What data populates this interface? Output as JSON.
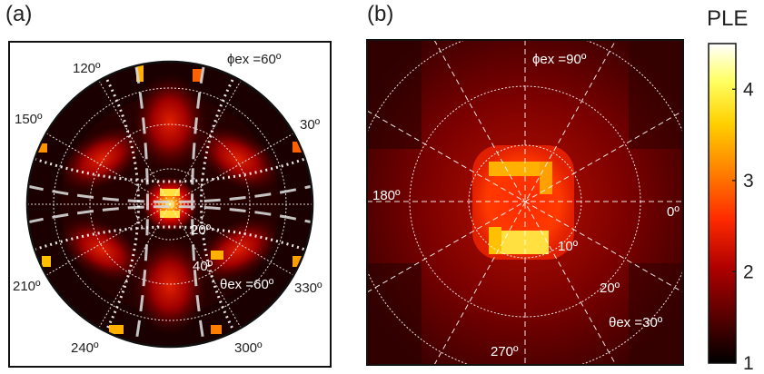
{
  "panel_a": {
    "label": "(a)",
    "annotation_phi": "ϕex =60º",
    "annotation_theta": "θex =60º",
    "angle_labels": [
      "120º",
      "150º",
      "30º",
      "210º",
      "330º",
      "240º",
      "300º"
    ],
    "radial_labels": [
      "20º",
      "40º"
    ]
  },
  "panel_b": {
    "label": "(b)",
    "annotation_phi": "ϕex =90º",
    "annotation_theta": "θex =30º",
    "angle_labels": [
      "180º",
      "0º",
      "270º"
    ],
    "radial_labels": [
      "10º",
      "20º"
    ]
  },
  "colorbar": {
    "title": "PLE",
    "ticks": [
      "1",
      "2",
      "3",
      "4"
    ],
    "min": 1,
    "max": 4.5,
    "colors": [
      "#000000",
      "#5a0000",
      "#b00000",
      "#ff2a00",
      "#ff8000",
      "#ffd000",
      "#ffff60",
      "#ffffff"
    ]
  },
  "chart_data": [
    {
      "type": "heatmap",
      "projection": "polar",
      "title": "",
      "angle_ticks_deg": [
        30,
        120,
        150,
        210,
        240,
        300,
        330
      ],
      "radial_ticks_deg": [
        20,
        40
      ],
      "excitation": {
        "phi_ex_deg": 60,
        "theta_ex_deg": 60
      },
      "value_range": [
        1,
        4.5
      ],
      "features": [
        {
          "kind": "central-hotspot",
          "value": 4.0
        },
        {
          "kind": "lobes",
          "angles_deg": [
            60,
            120,
            240,
            300
          ],
          "value": 2.2
        },
        {
          "kind": "rim-spots",
          "value": 3.5
        }
      ]
    },
    {
      "type": "heatmap",
      "projection": "polar",
      "title": "",
      "angle_ticks_deg": [
        0,
        180,
        270
      ],
      "radial_ticks_deg": [
        10,
        20
      ],
      "excitation": {
        "phi_ex_deg": 90,
        "theta_ex_deg": 30
      },
      "value_range": [
        1,
        4.5
      ],
      "features": [
        {
          "kind": "central-ring",
          "radius_deg": 7,
          "value": 2.6
        },
        {
          "kind": "bright-patch-top",
          "value": 3.7
        },
        {
          "kind": "bright-patch-bottom",
          "value": 3.9
        },
        {
          "kind": "background",
          "value": 1.5
        }
      ]
    }
  ]
}
